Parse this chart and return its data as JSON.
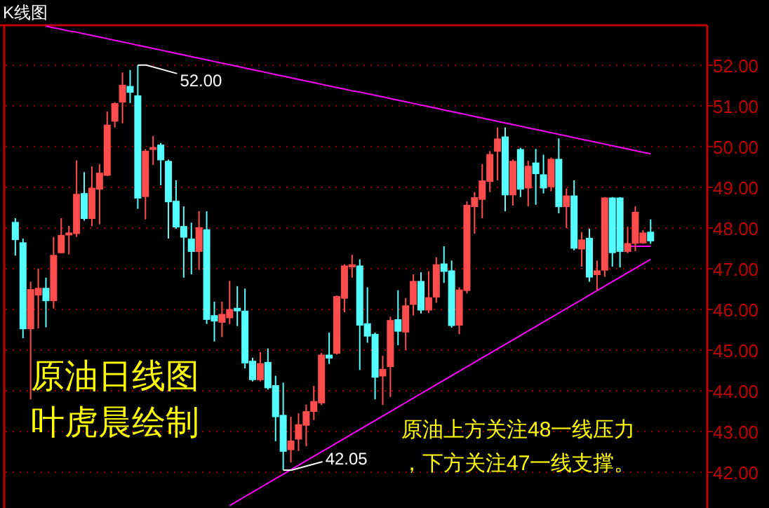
{
  "chart_data": {
    "type": "candlestick",
    "title": "K线图",
    "categories": [
      null,
      null,
      null,
      null,
      null,
      null,
      null,
      null,
      null,
      null,
      null,
      null,
      null,
      null,
      null,
      null,
      null,
      null,
      null,
      null,
      null,
      null,
      null,
      null,
      null,
      null,
      null,
      null,
      null,
      null,
      null,
      null,
      null,
      null,
      null,
      null,
      null,
      null,
      null,
      null,
      null,
      null,
      null,
      null,
      null,
      null,
      null,
      null,
      null,
      null,
      null,
      null,
      null,
      null,
      null,
      null,
      null,
      null,
      null,
      null,
      null,
      null,
      null,
      null,
      null,
      null,
      null,
      null,
      null,
      null,
      null,
      null,
      null,
      null,
      null,
      null,
      null,
      null,
      null,
      null,
      null,
      null,
      null,
      null
    ],
    "ohlc": [
      [
        48.13,
        48.24,
        47.32,
        47.72
      ],
      [
        47.63,
        47.74,
        45.29,
        45.53
      ],
      [
        45.53,
        46.68,
        43.79,
        46.48
      ],
      [
        46.36,
        47.0,
        45.53,
        46.51
      ],
      [
        46.51,
        46.78,
        45.56,
        46.22
      ],
      [
        46.22,
        47.78,
        46.02,
        47.32
      ],
      [
        47.4,
        48.24,
        47.38,
        47.81
      ],
      [
        47.84,
        48.05,
        47.35,
        47.87
      ],
      [
        47.87,
        49.66,
        47.78,
        48.82
      ],
      [
        48.84,
        49.37,
        48.18,
        48.24
      ],
      [
        48.24,
        49.51,
        48.04,
        48.97
      ],
      [
        48.96,
        49.57,
        48.09,
        49.34
      ],
      [
        49.3,
        50.86,
        49.28,
        50.52
      ],
      [
        50.63,
        51.09,
        50.47,
        51.05
      ],
      [
        51.1,
        51.82,
        50.57,
        51.5
      ],
      [
        51.47,
        51.88,
        51.07,
        51.34
      ],
      [
        51.24,
        52.0,
        48.47,
        48.74
      ],
      [
        48.78,
        49.94,
        48.21,
        49.88
      ],
      [
        49.94,
        50.26,
        49.55,
        49.97
      ],
      [
        50.03,
        50.09,
        49.05,
        49.68
      ],
      [
        49.63,
        49.68,
        47.74,
        48.65
      ],
      [
        48.65,
        49.17,
        47.98,
        48.03
      ],
      [
        48.03,
        48.53,
        46.78,
        47.78
      ],
      [
        47.72,
        48.13,
        46.86,
        47.43
      ],
      [
        47.43,
        48.41,
        46.97,
        48.0
      ],
      [
        47.95,
        48.41,
        45.64,
        45.76
      ],
      [
        45.84,
        46.19,
        45.21,
        45.72
      ],
      [
        45.69,
        46.19,
        45.32,
        45.87
      ],
      [
        45.8,
        46.7,
        45.64,
        45.99
      ],
      [
        46.02,
        46.57,
        45.59,
        45.97
      ],
      [
        45.95,
        46.51,
        44.55,
        44.69
      ],
      [
        44.72,
        44.81,
        44.23,
        44.28
      ],
      [
        44.28,
        44.95,
        44.23,
        44.66
      ],
      [
        44.69,
        45.04,
        44.03,
        44.08
      ],
      [
        44.12,
        44.37,
        42.76,
        43.37
      ],
      [
        43.39,
        44.2,
        42.05,
        42.52
      ],
      [
        42.56,
        43.36,
        42.24,
        42.76
      ],
      [
        42.82,
        43.45,
        42.52,
        43.16
      ],
      [
        43.16,
        43.66,
        42.64,
        43.48
      ],
      [
        43.5,
        44.12,
        43.28,
        43.73
      ],
      [
        43.71,
        44.93,
        43.65,
        44.87
      ],
      [
        44.87,
        45.43,
        44.66,
        44.81
      ],
      [
        44.93,
        46.34,
        44.89,
        46.31
      ],
      [
        46.28,
        47.11,
        45.93,
        47.06
      ],
      [
        47.05,
        47.34,
        46.78,
        47.09
      ],
      [
        47.06,
        47.23,
        44.51,
        45.62
      ],
      [
        45.64,
        46.54,
        45.18,
        45.35
      ],
      [
        45.38,
        45.43,
        43.79,
        44.34
      ],
      [
        44.37,
        44.86,
        43.65,
        44.52
      ],
      [
        44.6,
        45.82,
        43.85,
        45.72
      ],
      [
        45.74,
        46.47,
        45.12,
        45.47
      ],
      [
        45.45,
        46.28,
        45.0,
        46.08
      ],
      [
        46.13,
        46.86,
        45.85,
        46.68
      ],
      [
        46.68,
        46.91,
        45.9,
        45.99
      ],
      [
        45.99,
        46.94,
        45.91,
        46.28
      ],
      [
        46.31,
        47.28,
        46.16,
        47.09
      ],
      [
        47.11,
        47.55,
        46.65,
        46.94
      ],
      [
        46.94,
        47.2,
        45.55,
        45.61
      ],
      [
        45.62,
        46.54,
        45.39,
        46.47
      ],
      [
        46.47,
        48.65,
        46.39,
        48.55
      ],
      [
        48.53,
        48.88,
        47.86,
        48.74
      ],
      [
        48.71,
        49.57,
        48.24,
        49.15
      ],
      [
        49.15,
        49.89,
        48.88,
        49.8
      ],
      [
        49.89,
        50.47,
        49.17,
        50.18
      ],
      [
        50.23,
        50.47,
        48.41,
        48.82
      ],
      [
        48.82,
        49.68,
        48.55,
        49.63
      ],
      [
        49.92,
        49.97,
        48.76,
        48.96
      ],
      [
        48.99,
        49.65,
        48.53,
        49.51
      ],
      [
        49.59,
        49.94,
        48.57,
        49.34
      ],
      [
        49.3,
        49.8,
        48.85,
        48.99
      ],
      [
        49.02,
        49.73,
        48.9,
        49.68
      ],
      [
        49.68,
        50.2,
        48.36,
        48.53
      ],
      [
        48.53,
        48.97,
        48.0,
        48.78
      ],
      [
        48.78,
        49.17,
        47.45,
        47.51
      ],
      [
        47.49,
        47.9,
        47.05,
        47.7
      ],
      [
        47.74,
        47.98,
        46.68,
        46.8
      ],
      [
        46.86,
        47.2,
        46.47,
        46.94
      ],
      [
        46.97,
        48.76,
        46.8,
        48.73
      ],
      [
        48.73,
        48.76,
        47.05,
        47.4
      ],
      [
        48.73,
        48.76,
        47.03,
        47.43
      ],
      [
        47.43,
        48.03,
        47.38,
        47.61
      ],
      [
        47.63,
        48.53,
        47.43,
        48.38
      ],
      [
        47.64,
        47.95,
        47.61,
        47.87
      ],
      [
        47.89,
        48.21,
        47.61,
        47.69
      ]
    ],
    "series": [
      {
        "type": "line",
        "color": "#ff00ff",
        "values": [
          null,
          null,
          null,
          null,
          52.96,
          52.92,
          52.88,
          52.84,
          52.81,
          52.77,
          52.73,
          52.69,
          52.65,
          52.61,
          52.57,
          52.53,
          52.49,
          52.45,
          52.41,
          52.37,
          52.33,
          52.29,
          52.25,
          52.21,
          52.17,
          52.13,
          52.09,
          52.05,
          52.01,
          51.97,
          51.93,
          51.89,
          51.85,
          51.81,
          51.77,
          51.73,
          51.69,
          51.65,
          51.61,
          51.57,
          51.53,
          51.49,
          51.45,
          51.41,
          51.37,
          51.34,
          51.3,
          51.26,
          51.22,
          51.18,
          51.14,
          51.1,
          51.06,
          51.02,
          50.98,
          50.94,
          50.9,
          50.86,
          50.82,
          50.78,
          50.74,
          50.7,
          50.66,
          50.62,
          50.58,
          50.54,
          50.5,
          50.46,
          50.42,
          50.38,
          50.34,
          50.3,
          50.26,
          50.22,
          50.18,
          50.14,
          50.1,
          50.06,
          50.02,
          49.98,
          49.94,
          49.9,
          49.86,
          49.82
        ]
      },
      {
        "type": "line",
        "color": "#ff00ff",
        "values": [
          null,
          null,
          null,
          null,
          null,
          null,
          null,
          null,
          null,
          null,
          null,
          null,
          null,
          null,
          null,
          null,
          null,
          null,
          null,
          null,
          null,
          null,
          null,
          null,
          null,
          null,
          null,
          null,
          41.18,
          41.29,
          41.4,
          41.51,
          41.62,
          41.73,
          41.84,
          41.95,
          42.06,
          42.17,
          42.28,
          42.39,
          42.5,
          42.61,
          42.72,
          42.83,
          42.94,
          43.05,
          43.16,
          43.27,
          43.38,
          43.49,
          43.6,
          43.71,
          43.82,
          43.93,
          44.04,
          44.15,
          44.26,
          44.37,
          44.48,
          44.59,
          44.7,
          44.81,
          44.92,
          45.03,
          45.14,
          45.25,
          45.36,
          45.47,
          45.58,
          45.69,
          45.8,
          45.91,
          46.02,
          46.13,
          46.24,
          46.35,
          46.46,
          46.57,
          46.68,
          46.79,
          46.9,
          47.01,
          47.12,
          47.23
        ]
      },
      {
        "type": "line",
        "color": "#ff00ff",
        "values": [
          null,
          null,
          null,
          null,
          null,
          null,
          null,
          null,
          null,
          null,
          null,
          null,
          null,
          null,
          null,
          null,
          null,
          null,
          null,
          null,
          null,
          null,
          null,
          null,
          null,
          null,
          null,
          null,
          null,
          null,
          null,
          null,
          null,
          null,
          null,
          null,
          null,
          null,
          null,
          null,
          null,
          null,
          null,
          null,
          null,
          null,
          null,
          null,
          null,
          null,
          null,
          null,
          null,
          null,
          null,
          null,
          null,
          null,
          null,
          null,
          null,
          null,
          null,
          null,
          null,
          null,
          null,
          null,
          null,
          null,
          null,
          null,
          null,
          null,
          null,
          null,
          null,
          null,
          null,
          null,
          47.55,
          47.55,
          47.55,
          47.55
        ]
      }
    ],
    "ylim": [
      41.12,
      52.98
    ],
    "yticks": [
      {
        "value": 42,
        "label": "42.00"
      },
      {
        "value": 43,
        "label": "43.00"
      },
      {
        "value": 44,
        "label": "44.00"
      },
      {
        "value": 45,
        "label": "45.00"
      },
      {
        "value": 46,
        "label": "46.00"
      },
      {
        "value": 47,
        "label": "47.00"
      },
      {
        "value": 48,
        "label": "48.00"
      },
      {
        "value": 49,
        "label": "49.00"
      },
      {
        "value": 50,
        "label": "50.00"
      },
      {
        "value": 51,
        "label": "51.00"
      },
      {
        "value": 52,
        "label": "52.00"
      }
    ],
    "tick_labels": "y",
    "grid": "y",
    "annotations": [
      "52.00",
      "42.05",
      "原油日线图",
      "叶虎晨绘制",
      "原油上方关注48一线压力",
      "，下方关注47一线支撑。"
    ]
  }
}
